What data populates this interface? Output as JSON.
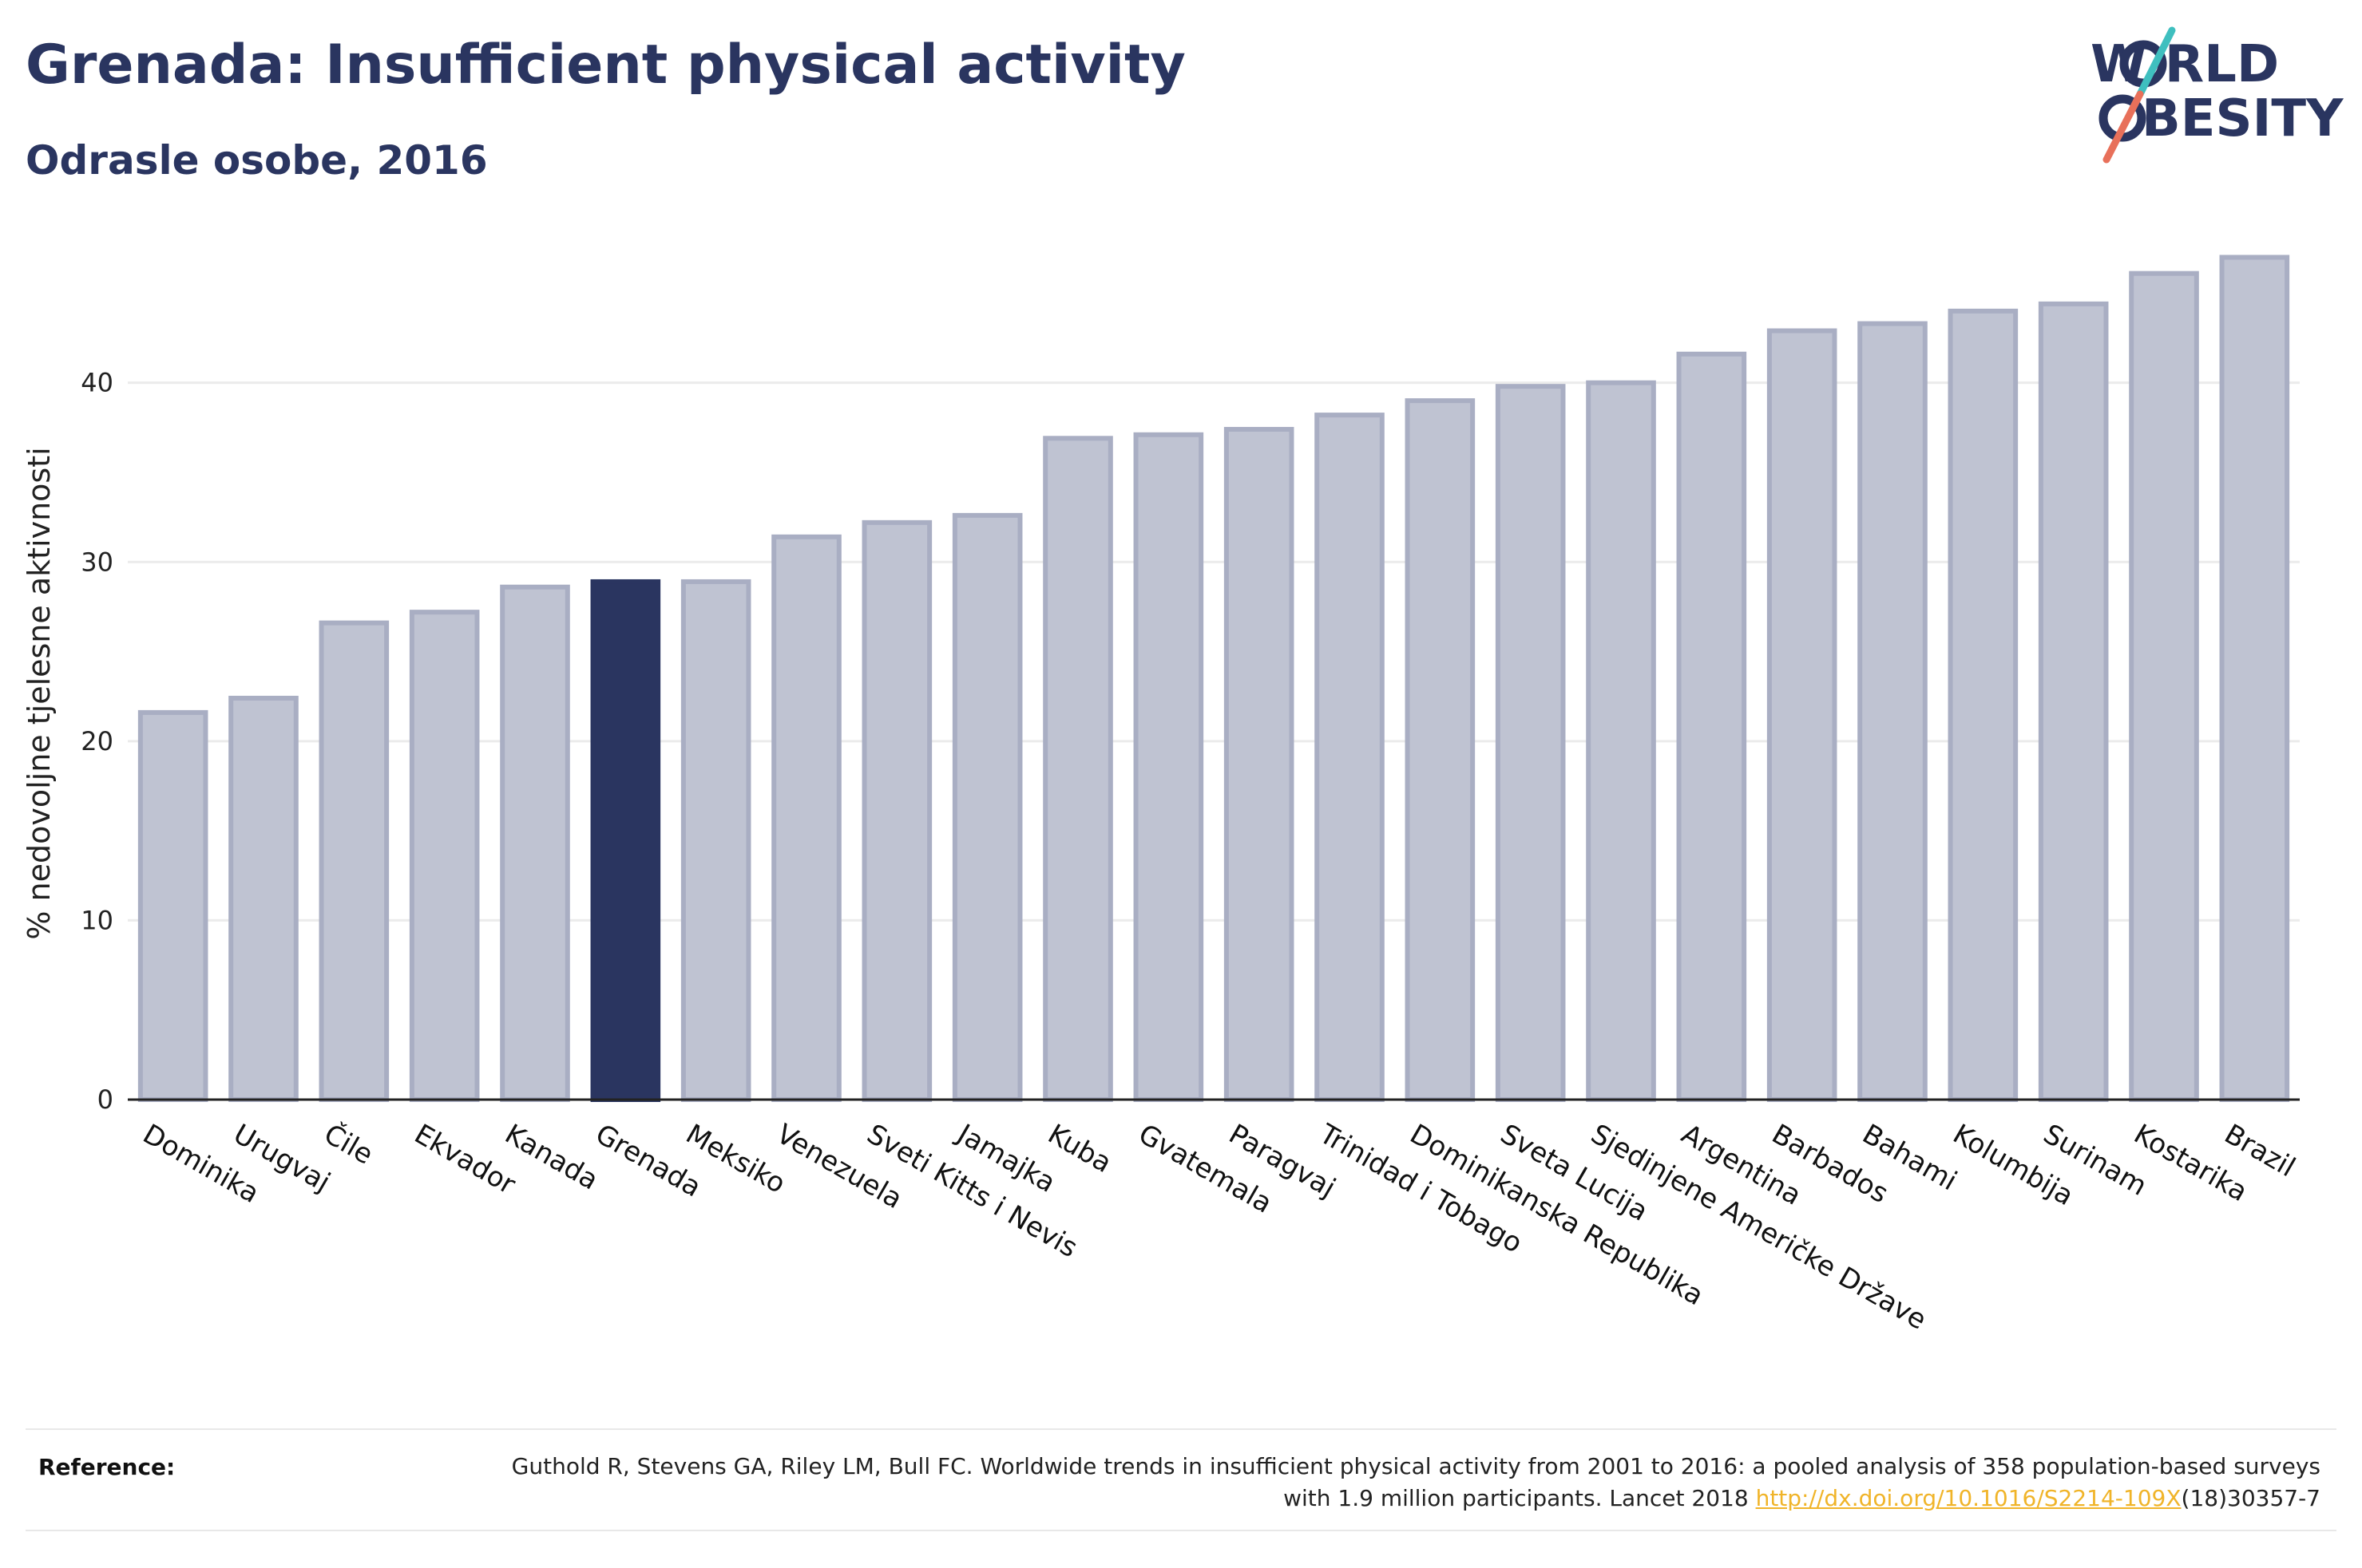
{
  "header": {
    "title": "Grenada: Insufficient physical activity",
    "subtitle": "Odrasle osobe, 2016"
  },
  "logo": {
    "line1": "W RLD",
    "line2": "BESITY",
    "icon": "world-obesity-logo",
    "colors": {
      "text": "#2a3560",
      "slash_top": "#3fbfbf",
      "slash_bottom": "#e8705a"
    }
  },
  "chart_data": {
    "type": "bar",
    "ylabel": "% nedovoljne tjelesne aktivnosti",
    "xlabel": "",
    "ylim": [
      0,
      48
    ],
    "yticks": [
      0,
      10,
      20,
      30,
      40
    ],
    "grid": true,
    "highlight": "Grenada",
    "colors": {
      "bar": "#bfc3d2",
      "bar_edge": "#a9aec3",
      "highlight": "#2a3560"
    },
    "categories": [
      "Dominika",
      "Urugvaj",
      "Čile",
      "Ekvador",
      "Kanada",
      "Grenada",
      "Meksiko",
      "Venezuela",
      "Sveti Kitts i Nevis",
      "Jamajka",
      "Kuba",
      "Gvatemala",
      "Paragvaj",
      "Trinidad i Tobago",
      "Dominikanska Republika",
      "Sveta Lucija",
      "Sjedinjene Američke Države",
      "Argentina",
      "Barbados",
      "Bahami",
      "Kolumbija",
      "Surinam",
      "Kostarika",
      "Brazil"
    ],
    "values": [
      21.6,
      22.4,
      26.6,
      27.2,
      28.6,
      28.9,
      28.9,
      31.4,
      32.2,
      32.6,
      36.9,
      37.1,
      37.4,
      38.2,
      39.0,
      39.8,
      40.0,
      41.6,
      42.9,
      43.3,
      44.0,
      44.4,
      46.1,
      47.0
    ]
  },
  "footer": {
    "reference_label": "Reference:",
    "reference_text_1": "Guthold R, Stevens GA, Riley LM, Bull FC. Worldwide trends in insufficient physical activity from 2001 to 2016: a pooled analysis of 358 population-based surveys with 1.9 million participants. Lancet 2018 ",
    "reference_link": "http://dx.doi.org/10.1016/S2214-109X",
    "reference_text_2": "(18)30357-7"
  }
}
